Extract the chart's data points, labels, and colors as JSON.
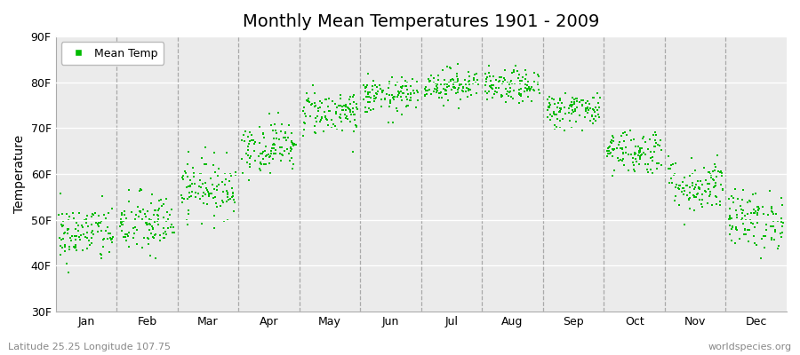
{
  "title": "Monthly Mean Temperatures 1901 - 2009",
  "ylabel": "Temperature",
  "ylim": [
    30,
    90
  ],
  "yticks": [
    30,
    40,
    50,
    60,
    70,
    80,
    90
  ],
  "ytick_labels": [
    "30F",
    "40F",
    "50F",
    "60F",
    "70F",
    "80F",
    "90F"
  ],
  "months": [
    "Jan",
    "Feb",
    "Mar",
    "Apr",
    "May",
    "Jun",
    "Jul",
    "Aug",
    "Sep",
    "Oct",
    "Nov",
    "Dec"
  ],
  "dot_color": "#00BB00",
  "bg_color": "#ebebeb",
  "legend_label": "Mean Temp",
  "caption_left": "Latitude 25.25 Longitude 107.75",
  "caption_right": "worldspecies.org",
  "mean_temps_F": [
    47.0,
    49.0,
    57.0,
    66.0,
    73.5,
    77.0,
    79.5,
    79.0,
    74.0,
    65.0,
    57.5,
    50.0
  ],
  "std_temps": [
    3.2,
    3.5,
    3.2,
    2.8,
    2.5,
    2.0,
    1.8,
    1.8,
    2.0,
    2.5,
    3.0,
    3.2
  ],
  "n_years": 109,
  "dot_size": 3.5
}
